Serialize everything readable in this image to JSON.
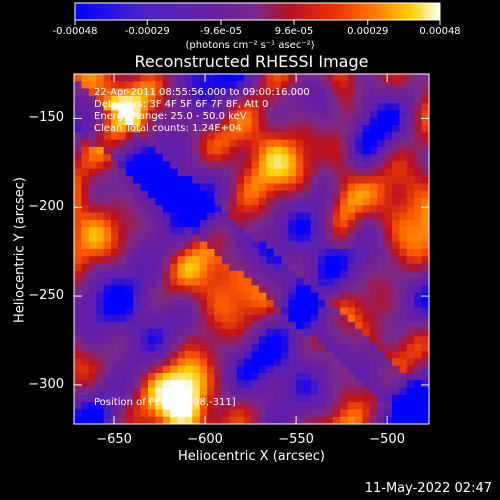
{
  "chart_data": {
    "type": "heatmap",
    "title": "Reconstructed RHESSI Image",
    "xlabel": "Heliocentric X (arcsec)",
    "ylabel": "Heliocentric Y (arcsec)",
    "xlim": [
      -672,
      -477
    ],
    "ylim": [
      -322,
      -125
    ],
    "x_ticks": [
      -650,
      -600,
      -550,
      -500
    ],
    "y_ticks": [
      -150,
      -200,
      -250,
      -300
    ],
    "colorbar": {
      "min": -0.00048,
      "max": 0.00048,
      "tick_values": [
        -0.00048,
        -0.00029,
        -9.6e-05,
        9.6e-05,
        0.00029,
        0.00048
      ],
      "tick_labels": [
        "-0.00048",
        "-0.00029",
        "-9.6e-05",
        "9.6e-05",
        "0.00029",
        "0.00048"
      ],
      "units_label": "(photons cm⁻² s⁻¹ asec⁻²)",
      "colors": [
        "#0000ff",
        "#5b1fb0",
        "#6a1fa0",
        "#7a2a8a",
        "#c0101a",
        "#ff5a00",
        "#ffd000",
        "#ffffff"
      ]
    },
    "annotations": [
      "22-Apr-2011 08:55:56.000 to 09:00:16.000",
      "Detectors: 3F 4F 5F 6F 7F 8F, Att 0",
      "Energy Range: 25.0 - 50.0 keV",
      "Clean    Total counts: 1.24E+04"
    ],
    "peak_label": "Position of Peak: [-608,-311]",
    "peak_position": [
      -608,
      -311
    ]
  },
  "footer": {
    "date": "11-May-2022 02:47"
  }
}
